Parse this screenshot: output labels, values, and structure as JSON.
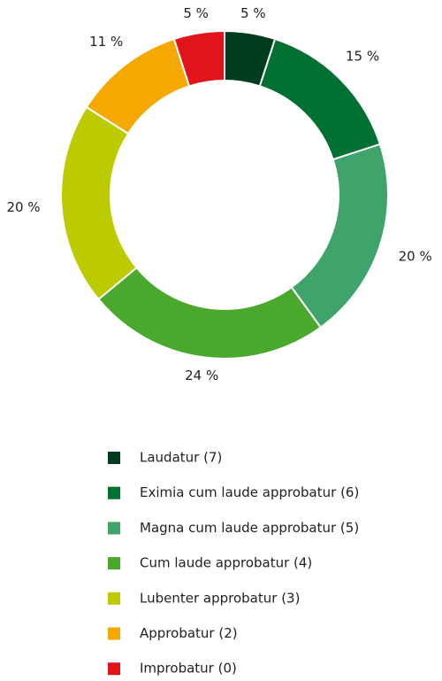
{
  "chart_data": {
    "type": "pie",
    "categories": [
      "Laudatur (7)",
      "Eximia cum laude approbatur (6)",
      "Magna cum laude approbatur (5)",
      "Cum laude approbatur (4)",
      "Lubenter approbatur (3)",
      "Approbatur (2)",
      "Improbatur (0)"
    ],
    "values": [
      5,
      15,
      20,
      24,
      20,
      11,
      5
    ],
    "value_labels": [
      "5 %",
      "15 %",
      "20 %",
      "24 %",
      "20 %",
      "11 %",
      "5 %"
    ],
    "colors": [
      "#003d1f",
      "#007033",
      "#3fa36c",
      "#4aa82d",
      "#bccb00",
      "#f5a900",
      "#e1141b"
    ]
  }
}
